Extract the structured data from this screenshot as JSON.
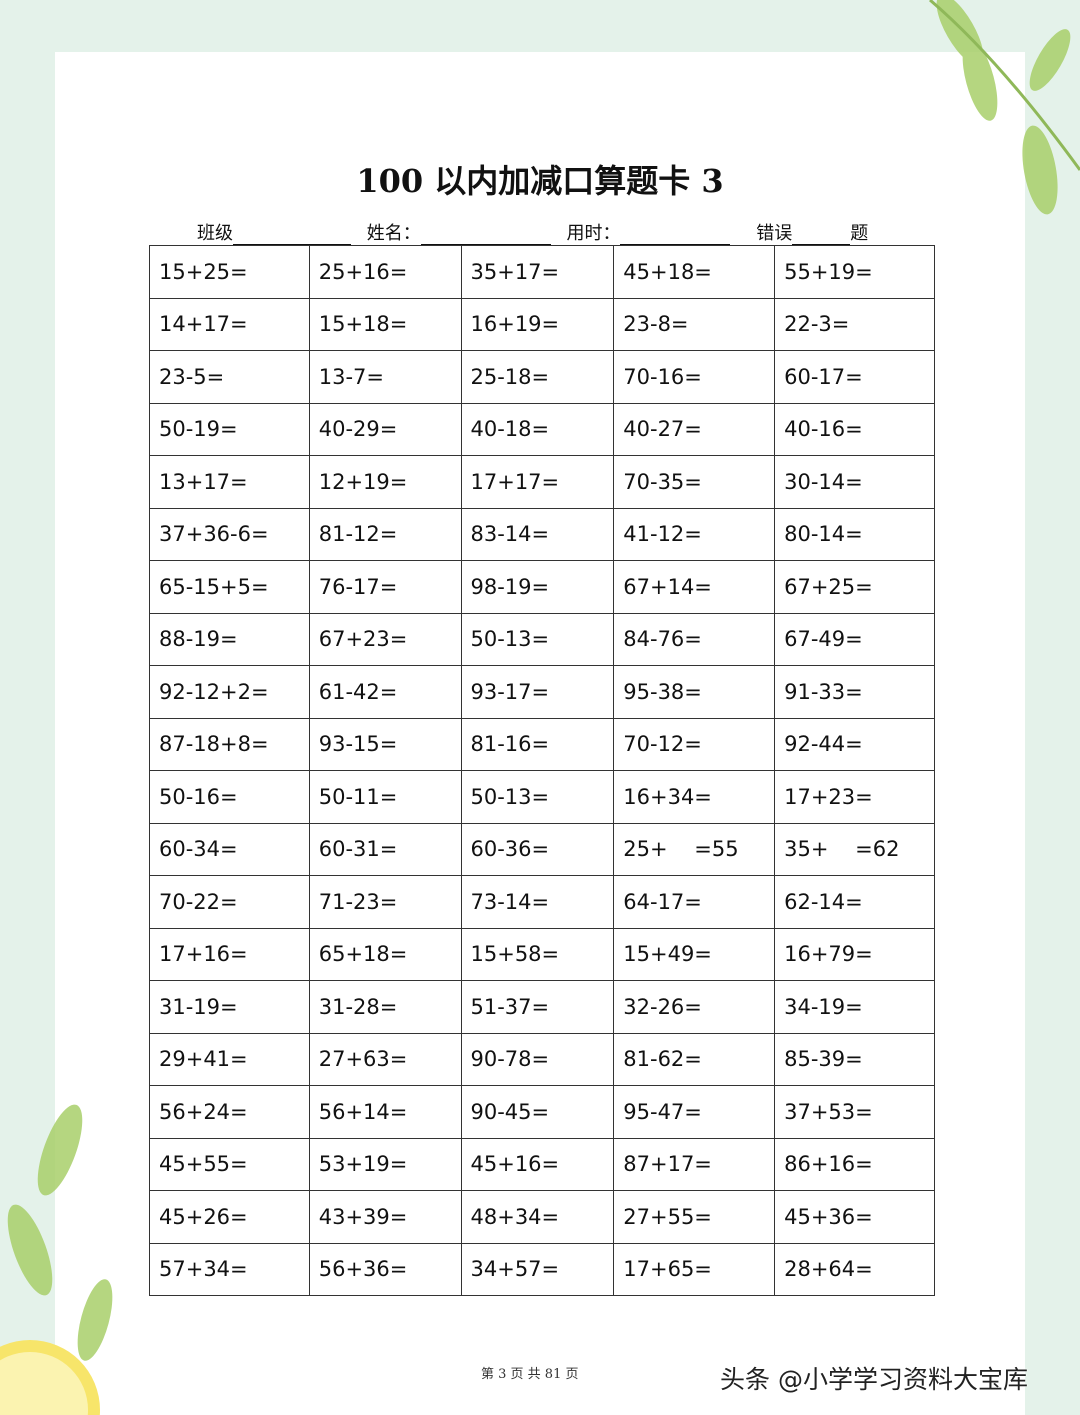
{
  "title": "100 以内加减口算题卡 3",
  "fields": {
    "class": "班级",
    "name": "姓名：",
    "time": "用时：",
    "errors": "错误",
    "errors_suffix": "题"
  },
  "rows": [
    [
      "15+25=",
      "25+16=",
      "35+17=",
      "45+18=",
      "55+19="
    ],
    [
      "14+17=",
      "15+18=",
      "16+19=",
      "23-8=",
      "22-3="
    ],
    [
      "23-5=",
      "13-7=",
      "25-18=",
      "70-16=",
      "60-17="
    ],
    [
      "50-19=",
      "40-29=",
      "40-18=",
      "40-27=",
      "40-16="
    ],
    [
      "13+17=",
      "12+19=",
      "17+17=",
      "70-35=",
      "30-14="
    ],
    [
      "37+36-6=",
      "81-12=",
      "83-14=",
      "41-12=",
      "80-14="
    ],
    [
      "65-15+5=",
      "76-17=",
      "98-19=",
      "67+14=",
      "67+25="
    ],
    [
      "88-19=",
      "67+23=",
      "50-13=",
      "84-76=",
      "67-49="
    ],
    [
      "92-12+2=",
      "61-42=",
      "93-17=",
      "95-38=",
      "91-33="
    ],
    [
      "87-18+8=",
      "93-15=",
      "81-16=",
      "70-12=",
      "92-44="
    ],
    [
      "50-16=",
      "50-11=",
      "50-13=",
      "16+34=",
      "17+23="
    ],
    [
      "60-34=",
      "60-31=",
      "60-36=",
      "25+    =55",
      "35+    =62"
    ],
    [
      "70-22=",
      "71-23=",
      "73-14=",
      "64-17=",
      "62-14="
    ],
    [
      "17+16=",
      "65+18=",
      "15+58=",
      "15+49=",
      "16+79="
    ],
    [
      "31-19=",
      "31-28=",
      "51-37=",
      "32-26=",
      "34-19="
    ],
    [
      "29+41=",
      "27+63=",
      "90-78=",
      "81-62=",
      "85-39="
    ],
    [
      "56+24=",
      "56+14=",
      "90-45=",
      "95-47=",
      "37+53="
    ],
    [
      "45+55=",
      "53+19=",
      "45+16=",
      "87+17=",
      "86+16="
    ],
    [
      "45+26=",
      "43+39=",
      "48+34=",
      "27+55=",
      "45+36="
    ],
    [
      "57+34=",
      "56+36=",
      "34+57=",
      "17+65=",
      "28+64="
    ]
  ],
  "footer": "第 3 页 共 81 页",
  "watermark": "头条 @小学学习资料大宝库"
}
